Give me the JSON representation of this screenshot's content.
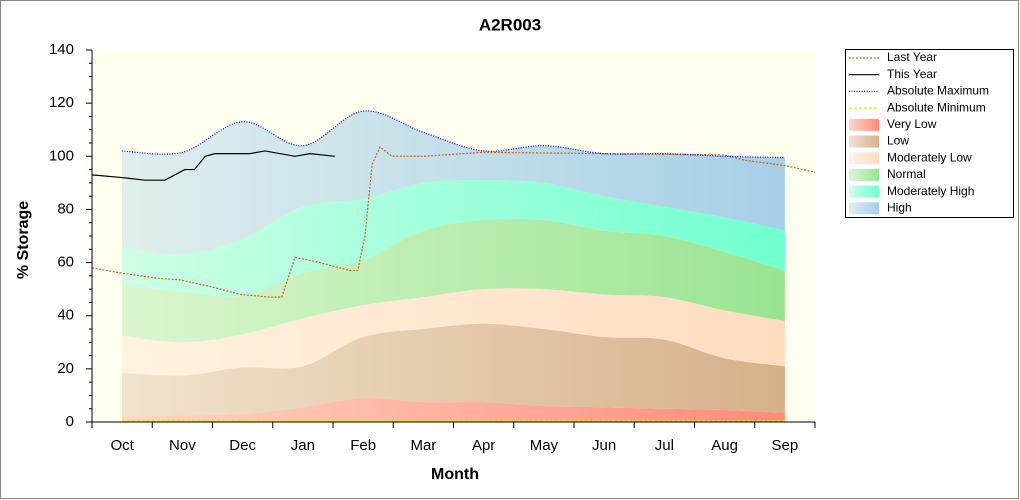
{
  "chart_data": {
    "type": "area",
    "title": "A2R003",
    "xlabel": "Month",
    "ylabel": "% Storage",
    "categories": [
      "Oct",
      "Nov",
      "Dec",
      "Jan",
      "Feb",
      "Mar",
      "Apr",
      "May",
      "Jun",
      "Jul",
      "Aug",
      "Sep"
    ],
    "xlim": [
      -0.5,
      11.5
    ],
    "ylim": [
      0,
      140
    ],
    "yticks": [
      0,
      20,
      40,
      60,
      80,
      100,
      120,
      140
    ],
    "legend": "right",
    "lines": [
      {
        "name": "Last Year",
        "color": "#c8641e",
        "dash": "2,1.5",
        "x": [
          -0.5,
          0,
          0.63,
          0.96,
          1.46,
          1.96,
          2.45,
          2.65,
          2.87,
          3.28,
          3.78,
          3.91,
          4.03,
          4.15,
          4.28,
          4.48,
          5,
          6,
          8,
          10,
          10.34,
          11,
          11.5
        ],
        "values": [
          58,
          56,
          54,
          53.5,
          51,
          48,
          47,
          47,
          62,
          60,
          57,
          57,
          70,
          97,
          103.5,
          100,
          100,
          101.5,
          101,
          100.5,
          98.5,
          96.5,
          94
        ]
      },
      {
        "name": "This Year",
        "color": "#000000",
        "dash": "none",
        "x": [
          -0.5,
          0,
          0.38,
          0.71,
          1.04,
          1.2,
          1.38,
          1.54,
          2.12,
          2.37,
          2.87,
          3.12,
          3.53
        ],
        "values": [
          93,
          92,
          91,
          91,
          95,
          95,
          100,
          101,
          101,
          102,
          100,
          101,
          100
        ]
      },
      {
        "name": "Absolute Maximum",
        "color": "#0000ff",
        "dash": "1,1.5",
        "values": [
          102,
          101.5,
          113,
          104,
          117,
          109,
          102,
          104,
          101,
          101,
          100,
          99.5
        ]
      },
      {
        "name": "Absolute Minimum",
        "color": "#e8e800",
        "dash": "3,2",
        "values": [
          0.5,
          0.5,
          0.5,
          0.5,
          0.5,
          0.5,
          0.5,
          0.5,
          0.5,
          0.5,
          0.5,
          0.5
        ]
      }
    ],
    "bands": [
      {
        "name": "Very Low",
        "color": "#ff8a78",
        "values": [
          2,
          2.5,
          3,
          5.5,
          9,
          7.5,
          7.5,
          6,
          5.5,
          5,
          4.5,
          3.5
        ]
      },
      {
        "name": "Low",
        "color": "#d6b08a",
        "values": [
          16.5,
          15,
          17.5,
          15.5,
          23,
          27.5,
          29.5,
          29,
          26.5,
          26,
          19.5,
          17.5
        ]
      },
      {
        "name": "Moderately Low",
        "color": "#fedcc0",
        "values": [
          14,
          12.5,
          12.5,
          18,
          12,
          12,
          13,
          15,
          16,
          16,
          18,
          17
        ]
      },
      {
        "name": "Normal",
        "color": "#98e490",
        "values": [
          19,
          19,
          14.5,
          17,
          17,
          25,
          26,
          26,
          24,
          23,
          22,
          19
        ]
      },
      {
        "name": "Moderately High",
        "color": "#70ffd0",
        "values": [
          14.5,
          14,
          21.5,
          25,
          23,
          18,
          15,
          14,
          13,
          11,
          13,
          15
        ]
      },
      {
        "name": "High",
        "color": "#a6cfe6",
        "values": [
          36,
          38.5,
          44,
          23,
          33,
          19,
          11,
          14,
          16,
          20,
          23,
          27.5
        ]
      }
    ]
  }
}
